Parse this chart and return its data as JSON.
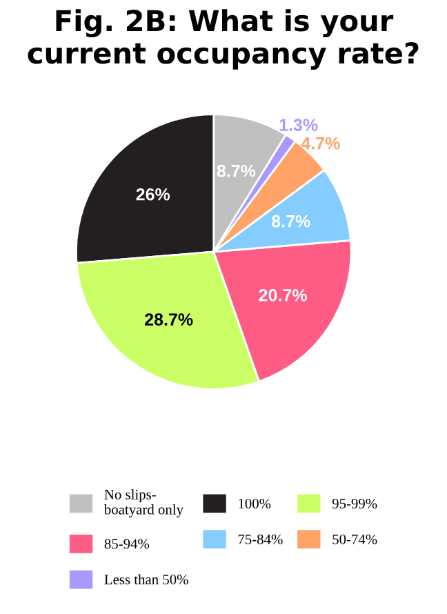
{
  "chart_data": {
    "type": "pie",
    "title": "Fig. 2B: What is your current occupancy rate?",
    "categories": [
      "No slips-\nboatyard only",
      "100%",
      "95-99%",
      "85-94%",
      "75-84%",
      "50-74%",
      "Less than 50%"
    ],
    "values": [
      8.7,
      26,
      28.7,
      20.7,
      8.7,
      4.7,
      1.3
    ],
    "value_labels": [
      "8.7%",
      "26%",
      "28.7%",
      "20.7%",
      "8.7%",
      "4.7%",
      "1.3%"
    ],
    "colors": [
      "#c0c0c0",
      "#231f20",
      "#ccff66",
      "#ff5c85",
      "#85ccff",
      "#ffa366",
      "#a999ff"
    ],
    "legend": "bottom"
  }
}
